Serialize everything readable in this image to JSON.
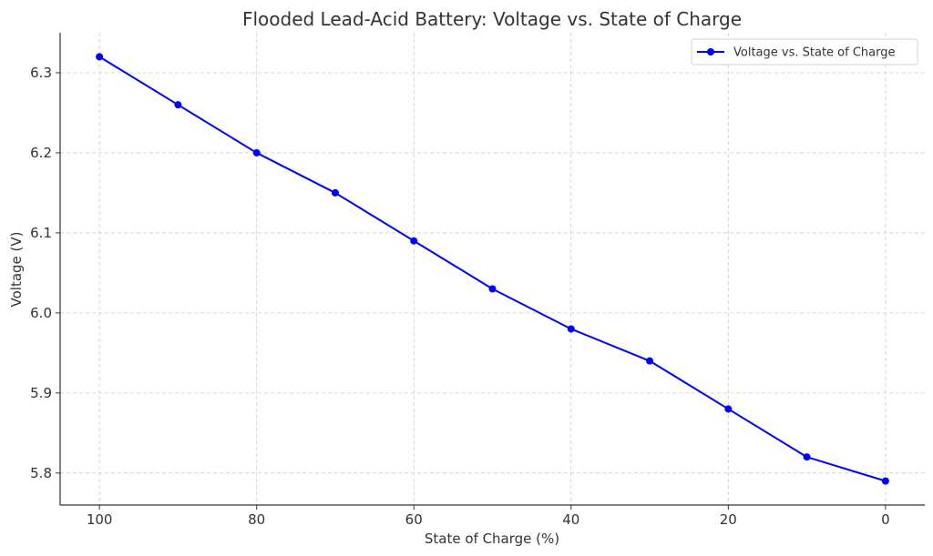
{
  "chart_data": {
    "type": "line",
    "title": "Flooded Lead-Acid Battery: Voltage vs. State of Charge",
    "xlabel": "State of Charge (%)",
    "ylabel": "Voltage (V)",
    "x": [
      100,
      90,
      80,
      70,
      60,
      50,
      40,
      30,
      20,
      10,
      0
    ],
    "series": [
      {
        "name": "Voltage vs. State of Charge",
        "values": [
          6.32,
          6.26,
          6.2,
          6.15,
          6.09,
          6.03,
          5.98,
          5.94,
          5.88,
          5.82,
          5.79
        ],
        "color": "#0000ff",
        "marker": "circle"
      }
    ],
    "xlim": [
      105,
      -5
    ],
    "ylim": [
      5.76,
      6.35
    ],
    "x_ticks": [
      100,
      80,
      60,
      40,
      20,
      0
    ],
    "x_tick_labels": [
      "100",
      "80",
      "60",
      "40",
      "20",
      "0"
    ],
    "y_ticks": [
      5.8,
      5.9,
      6.0,
      6.1,
      6.2,
      6.3
    ],
    "y_tick_labels": [
      "5.8",
      "5.9",
      "6.0",
      "6.1",
      "6.2",
      "6.3"
    ],
    "x_axis_reversed": true,
    "grid": true,
    "legend_position": "top-right"
  }
}
